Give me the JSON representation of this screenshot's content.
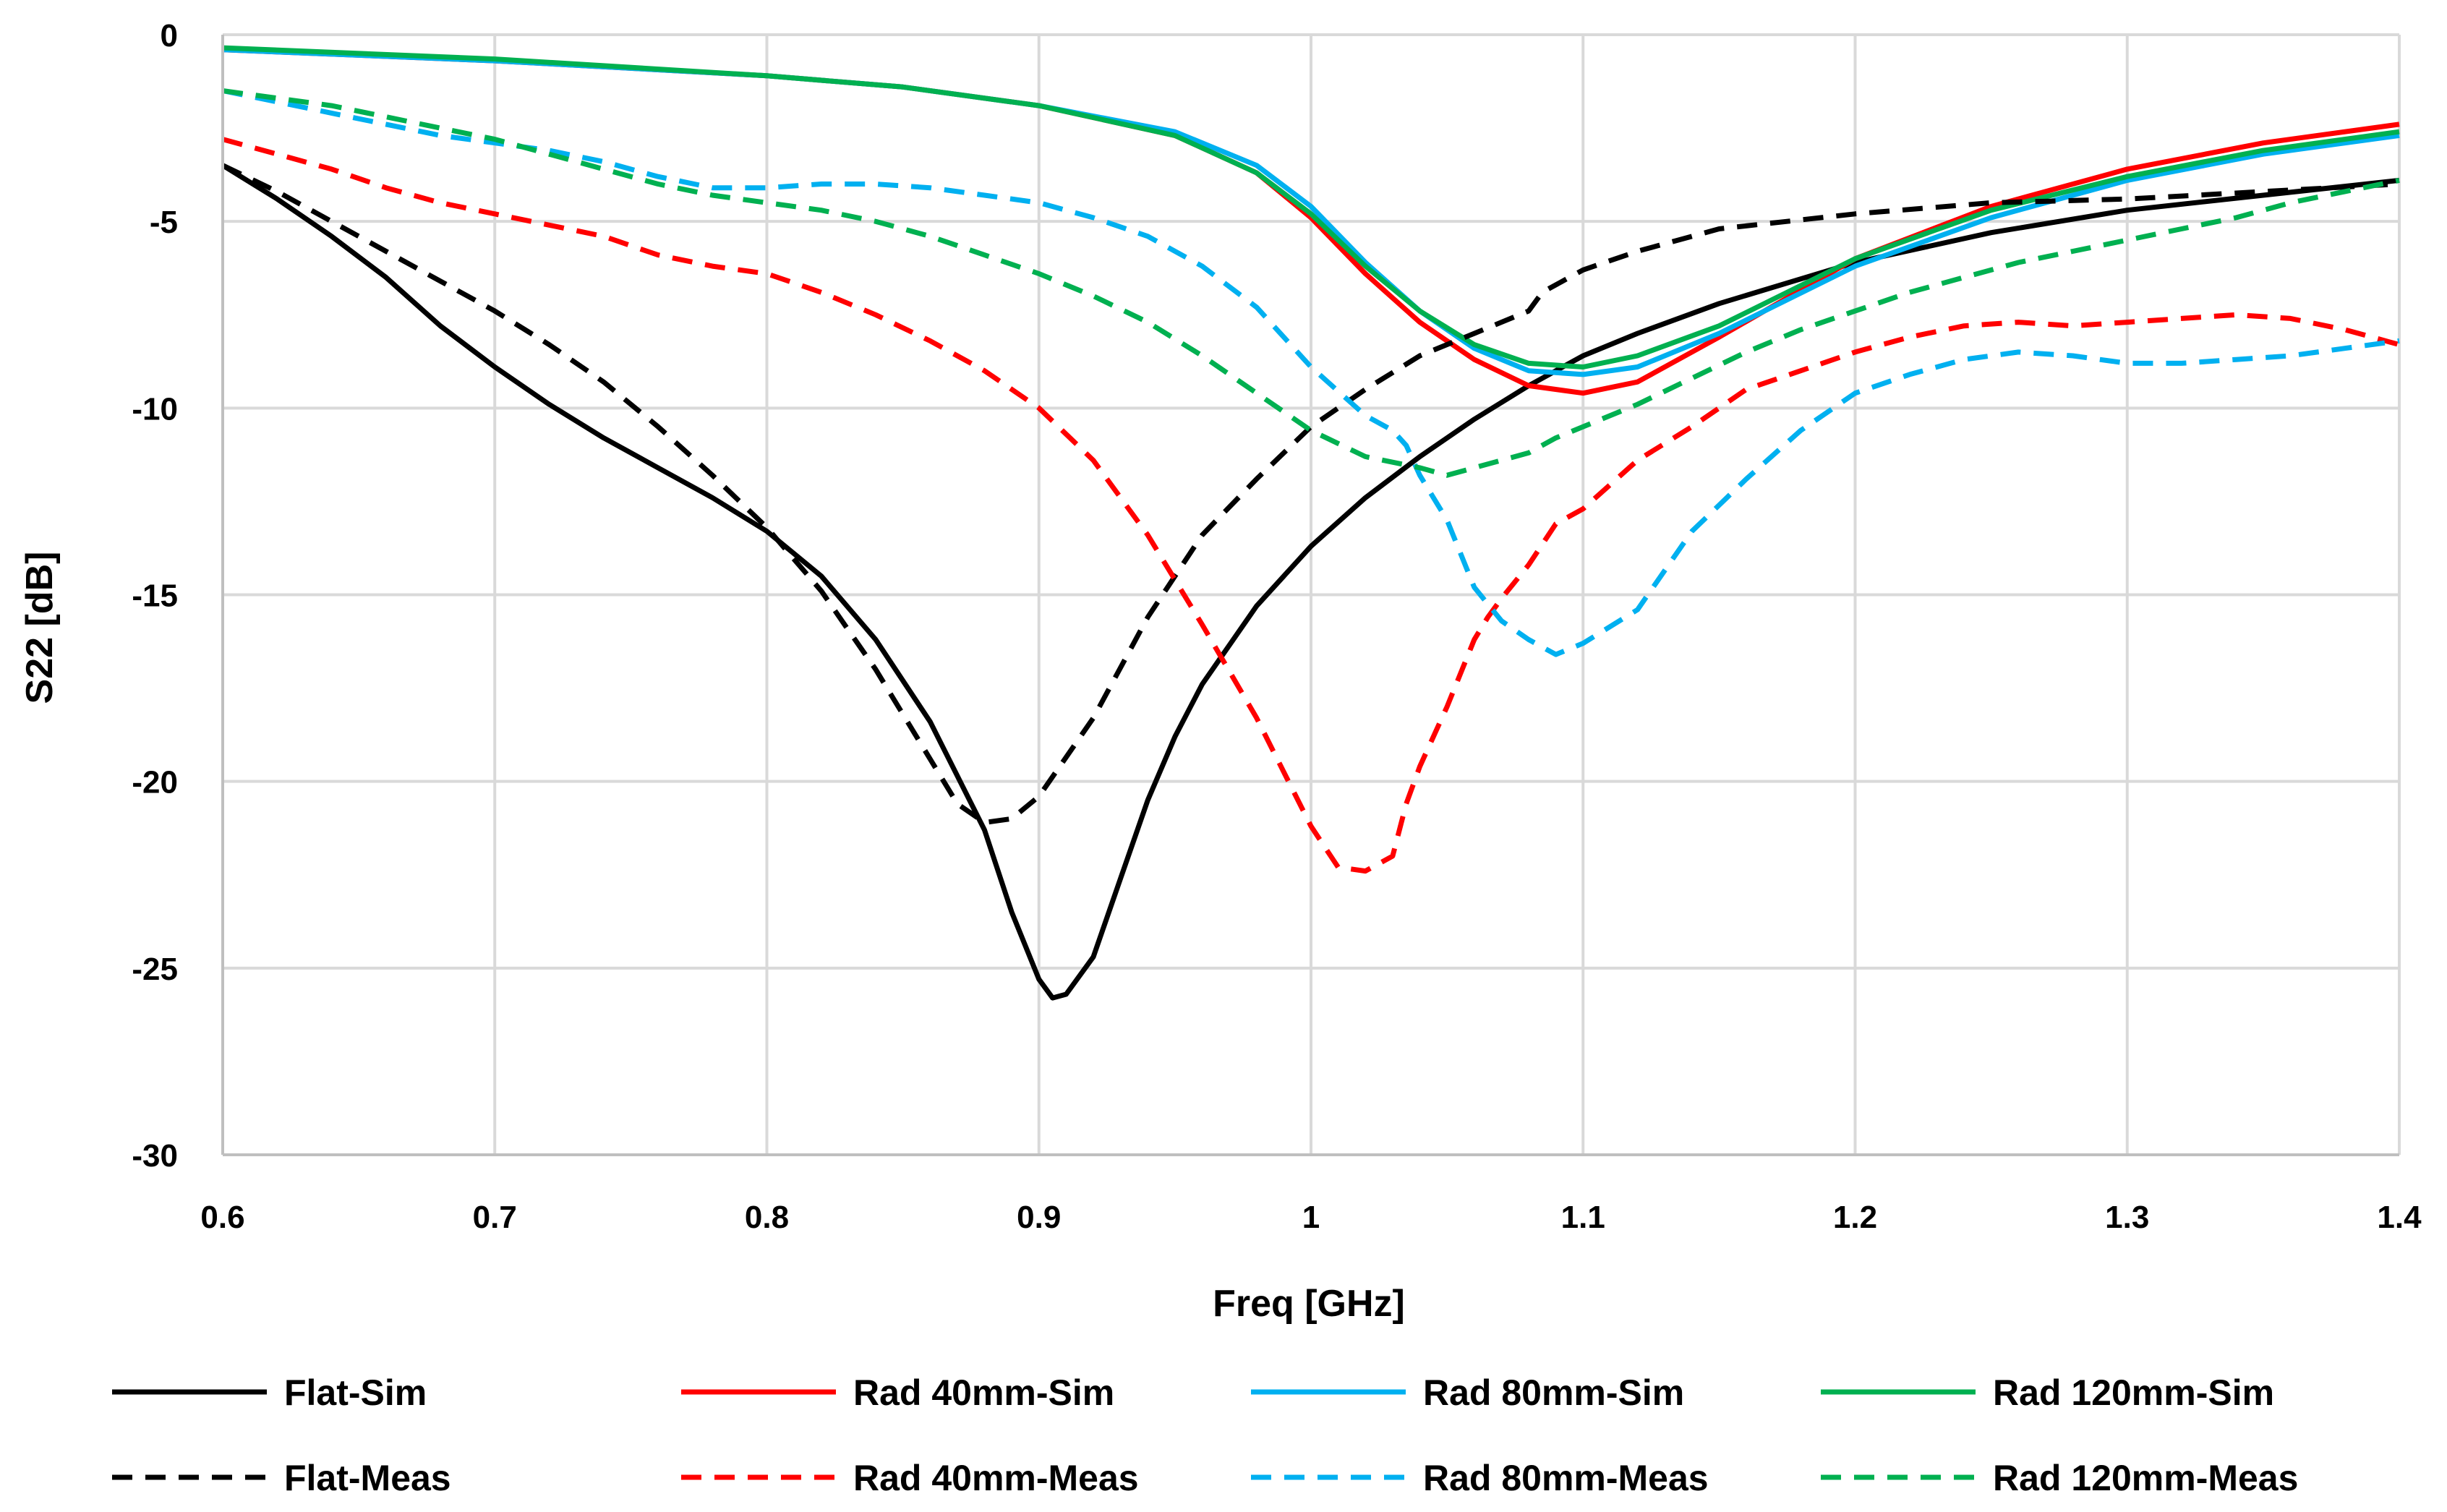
{
  "chart_data": {
    "type": "line",
    "title": "",
    "xlabel": "Freq [GHz]",
    "ylabel": "S22 [dB]",
    "xlim": [
      0.6,
      1.4
    ],
    "ylim": [
      -30,
      0
    ],
    "x_ticks": [
      "0.6",
      "0.7",
      "0.8",
      "0.9",
      "1",
      "1.1",
      "1.2",
      "1.3",
      "1.4"
    ],
    "y_ticks": [
      "0",
      "-5",
      "-10",
      "-15",
      "-20",
      "-25",
      "-30"
    ],
    "grid": true,
    "legend_position": "bottom",
    "series": [
      {
        "name": "Flat-Sim",
        "color": "#000000",
        "style": "solid",
        "x": [
          0.6,
          0.62,
          0.64,
          0.66,
          0.68,
          0.7,
          0.72,
          0.74,
          0.76,
          0.78,
          0.8,
          0.82,
          0.84,
          0.86,
          0.88,
          0.89,
          0.9,
          0.905,
          0.91,
          0.92,
          0.93,
          0.94,
          0.95,
          0.96,
          0.98,
          1.0,
          1.02,
          1.04,
          1.06,
          1.08,
          1.1,
          1.12,
          1.15,
          1.2,
          1.25,
          1.3,
          1.35,
          1.4
        ],
        "y": [
          -3.5,
          -4.4,
          -5.4,
          -6.5,
          -7.8,
          -8.9,
          -9.9,
          -10.8,
          -11.6,
          -12.4,
          -13.3,
          -14.5,
          -16.2,
          -18.4,
          -21.3,
          -23.5,
          -25.3,
          -25.8,
          -25.7,
          -24.7,
          -22.6,
          -20.5,
          -18.8,
          -17.4,
          -15.3,
          -13.7,
          -12.4,
          -11.3,
          -10.3,
          -9.4,
          -8.6,
          -8.0,
          -7.2,
          -6.1,
          -5.3,
          -4.7,
          -4.3,
          -3.9
        ]
      },
      {
        "name": "Rad 40mm-Sim",
        "color": "#ff0000",
        "style": "solid",
        "x": [
          0.6,
          0.7,
          0.8,
          0.85,
          0.9,
          0.95,
          0.98,
          1.0,
          1.02,
          1.04,
          1.06,
          1.08,
          1.1,
          1.12,
          1.15,
          1.2,
          1.25,
          1.3,
          1.35,
          1.4
        ],
        "y": [
          -0.4,
          -0.7,
          -1.1,
          -1.4,
          -1.9,
          -2.7,
          -3.7,
          -4.9,
          -6.4,
          -7.7,
          -8.7,
          -9.4,
          -9.6,
          -9.3,
          -8.1,
          -6.0,
          -4.6,
          -3.6,
          -2.9,
          -2.4
        ]
      },
      {
        "name": "Rad 80mm-Sim",
        "color": "#00b0f0",
        "style": "solid",
        "x": [
          0.6,
          0.7,
          0.8,
          0.85,
          0.9,
          0.95,
          0.98,
          1.0,
          1.02,
          1.04,
          1.06,
          1.08,
          1.1,
          1.12,
          1.15,
          1.2,
          1.25,
          1.3,
          1.35,
          1.4
        ],
        "y": [
          -0.4,
          -0.7,
          -1.1,
          -1.4,
          -1.9,
          -2.6,
          -3.5,
          -4.6,
          -6.1,
          -7.4,
          -8.4,
          -9.0,
          -9.1,
          -8.9,
          -8.0,
          -6.2,
          -4.9,
          -3.9,
          -3.2,
          -2.7
        ]
      },
      {
        "name": "Rad 120mm-Sim",
        "color": "#00b050",
        "style": "solid",
        "x": [
          0.6,
          0.7,
          0.8,
          0.85,
          0.9,
          0.95,
          0.98,
          1.0,
          1.02,
          1.04,
          1.06,
          1.08,
          1.1,
          1.12,
          1.15,
          1.2,
          1.25,
          1.3,
          1.35,
          1.4
        ],
        "y": [
          -0.35,
          -0.65,
          -1.1,
          -1.4,
          -1.9,
          -2.7,
          -3.7,
          -4.8,
          -6.2,
          -7.4,
          -8.3,
          -8.8,
          -8.9,
          -8.6,
          -7.8,
          -6.0,
          -4.7,
          -3.8,
          -3.1,
          -2.6
        ]
      },
      {
        "name": "Flat-Meas",
        "color": "#000000",
        "style": "dashed",
        "x": [
          0.6,
          0.62,
          0.64,
          0.66,
          0.68,
          0.7,
          0.72,
          0.74,
          0.76,
          0.78,
          0.8,
          0.82,
          0.84,
          0.86,
          0.87,
          0.88,
          0.89,
          0.9,
          0.92,
          0.94,
          0.96,
          0.98,
          1.0,
          1.02,
          1.04,
          1.06,
          1.08,
          1.085,
          1.09,
          1.1,
          1.12,
          1.15,
          1.2,
          1.25,
          1.3,
          1.35,
          1.4
        ],
        "y": [
          -3.5,
          -4.2,
          -5.0,
          -5.8,
          -6.6,
          -7.4,
          -8.3,
          -9.3,
          -10.5,
          -11.8,
          -13.2,
          -14.9,
          -17.0,
          -19.4,
          -20.6,
          -21.1,
          -21.0,
          -20.4,
          -18.3,
          -15.6,
          -13.4,
          -11.9,
          -10.5,
          -9.5,
          -8.6,
          -8.0,
          -7.4,
          -6.9,
          -6.7,
          -6.3,
          -5.8,
          -5.2,
          -4.8,
          -4.5,
          -4.4,
          -4.2,
          -4.0
        ]
      },
      {
        "name": "Rad 40mm-Meas",
        "color": "#ff0000",
        "style": "dashed",
        "x": [
          0.6,
          0.62,
          0.64,
          0.66,
          0.68,
          0.7,
          0.72,
          0.74,
          0.76,
          0.78,
          0.8,
          0.82,
          0.84,
          0.86,
          0.88,
          0.9,
          0.92,
          0.94,
          0.96,
          0.98,
          1.0,
          1.01,
          1.02,
          1.03,
          1.035,
          1.04,
          1.05,
          1.06,
          1.065,
          1.07,
          1.08,
          1.09,
          1.095,
          1.1,
          1.12,
          1.14,
          1.16,
          1.18,
          1.2,
          1.22,
          1.24,
          1.26,
          1.28,
          1.3,
          1.32,
          1.34,
          1.36,
          1.38,
          1.4
        ],
        "y": [
          -2.8,
          -3.2,
          -3.6,
          -4.1,
          -4.5,
          -4.8,
          -5.1,
          -5.4,
          -5.9,
          -6.2,
          -6.4,
          -6.9,
          -7.5,
          -8.2,
          -9.0,
          -10.0,
          -11.4,
          -13.4,
          -15.8,
          -18.3,
          -21.2,
          -22.3,
          -22.4,
          -22.0,
          -20.6,
          -19.6,
          -18.0,
          -16.2,
          -15.6,
          -15.1,
          -14.2,
          -13.1,
          -12.9,
          -12.7,
          -11.4,
          -10.5,
          -9.5,
          -9.0,
          -8.5,
          -8.1,
          -7.8,
          -7.7,
          -7.8,
          -7.7,
          -7.6,
          -7.5,
          -7.6,
          -7.9,
          -8.3
        ]
      },
      {
        "name": "Rad 80mm-Meas",
        "color": "#00b0f0",
        "style": "dashed",
        "x": [
          0.6,
          0.62,
          0.64,
          0.66,
          0.68,
          0.7,
          0.72,
          0.74,
          0.76,
          0.78,
          0.8,
          0.82,
          0.84,
          0.86,
          0.88,
          0.9,
          0.92,
          0.94,
          0.96,
          0.98,
          1.0,
          1.02,
          1.03,
          1.035,
          1.04,
          1.05,
          1.06,
          1.07,
          1.08,
          1.09,
          1.1,
          1.12,
          1.14,
          1.16,
          1.18,
          1.2,
          1.22,
          1.24,
          1.26,
          1.28,
          1.3,
          1.32,
          1.34,
          1.36,
          1.38,
          1.4
        ],
        "y": [
          -1.5,
          -1.8,
          -2.1,
          -2.4,
          -2.7,
          -2.9,
          -3.1,
          -3.4,
          -3.8,
          -4.1,
          -4.1,
          -4.0,
          -4.0,
          -4.1,
          -4.3,
          -4.5,
          -4.9,
          -5.4,
          -6.2,
          -7.3,
          -8.9,
          -10.2,
          -10.6,
          -11.0,
          -11.8,
          -13.0,
          -14.8,
          -15.7,
          -16.2,
          -16.6,
          -16.3,
          -15.4,
          -13.3,
          -11.9,
          -10.6,
          -9.6,
          -9.1,
          -8.7,
          -8.5,
          -8.6,
          -8.8,
          -8.8,
          -8.7,
          -8.6,
          -8.4,
          -8.2
        ]
      },
      {
        "name": "Rad 120mm-Meas",
        "color": "#00b050",
        "style": "dashed",
        "x": [
          0.6,
          0.62,
          0.64,
          0.66,
          0.68,
          0.7,
          0.72,
          0.74,
          0.76,
          0.78,
          0.8,
          0.82,
          0.84,
          0.86,
          0.88,
          0.9,
          0.92,
          0.94,
          0.96,
          0.98,
          1.0,
          1.02,
          1.04,
          1.05,
          1.06,
          1.08,
          1.09,
          1.1,
          1.12,
          1.14,
          1.16,
          1.18,
          1.2,
          1.22,
          1.24,
          1.26,
          1.28,
          1.3,
          1.32,
          1.34,
          1.36,
          1.38,
          1.4
        ],
        "y": [
          -1.5,
          -1.7,
          -1.9,
          -2.2,
          -2.5,
          -2.8,
          -3.2,
          -3.6,
          -4.0,
          -4.3,
          -4.5,
          -4.7,
          -5.0,
          -5.4,
          -5.9,
          -6.4,
          -7.0,
          -7.7,
          -8.6,
          -9.6,
          -10.6,
          -11.3,
          -11.6,
          -11.8,
          -11.6,
          -11.2,
          -10.8,
          -10.5,
          -9.9,
          -9.2,
          -8.5,
          -7.9,
          -7.4,
          -6.9,
          -6.5,
          -6.1,
          -5.8,
          -5.5,
          -5.2,
          -4.9,
          -4.5,
          -4.2,
          -3.9
        ]
      }
    ]
  }
}
